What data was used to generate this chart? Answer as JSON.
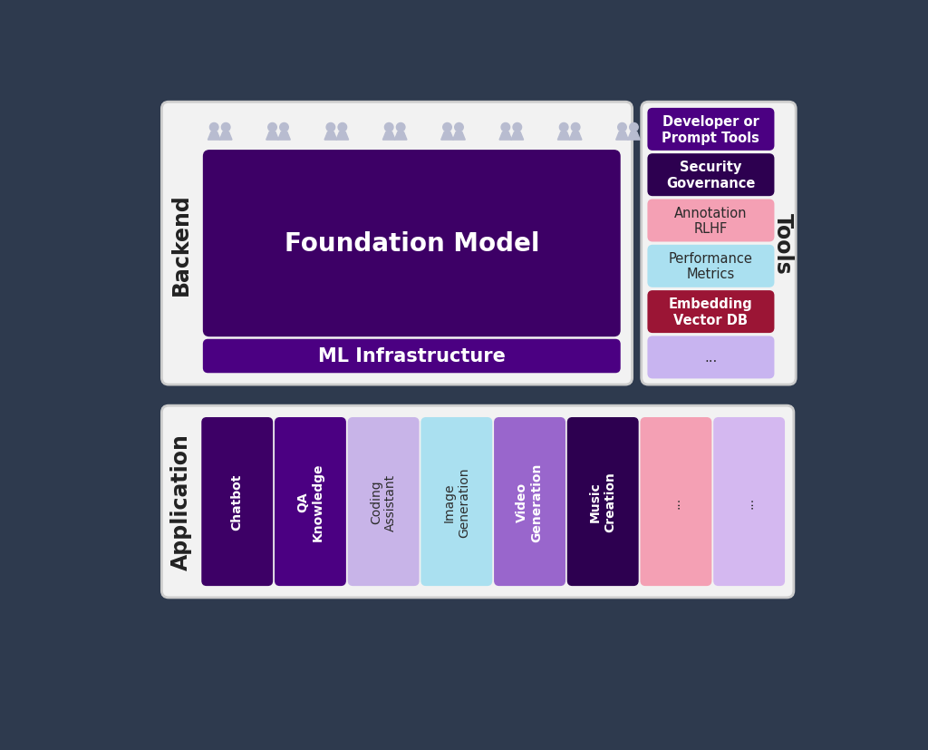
{
  "bg_color": "#2e3a4e",
  "panel_color": "#f0f0f0",
  "panel_edge": "#cccccc",
  "app_bars": [
    {
      "label": "Chatbot",
      "color": "#3d0066",
      "text_color": "#ffffff"
    },
    {
      "label": "QA\nKnowledge",
      "color": "#4b0082",
      "text_color": "#ffffff"
    },
    {
      "label": "Coding\nAssistant",
      "color": "#c8b4e8",
      "text_color": "#2d2d2d"
    },
    {
      "label": "Image\nGeneration",
      "color": "#aae0f0",
      "text_color": "#2d2d2d"
    },
    {
      "label": "Video\nGeneration",
      "color": "#9966cc",
      "text_color": "#ffffff"
    },
    {
      "label": "Music\nCreation",
      "color": "#2d0050",
      "text_color": "#ffffff"
    },
    {
      "label": "...",
      "color": "#f4a0b4",
      "text_color": "#2d2d2d"
    },
    {
      "label": "...",
      "color": "#d4b8f0",
      "text_color": "#2d2d2d"
    }
  ],
  "foundation_model_color": "#3d0066",
  "foundation_model_text": "Foundation Model",
  "ml_infra_color": "#4b0082",
  "ml_infra_text": "ML Infrastructure",
  "tools_items": [
    {
      "label": "Developer or\nPrompt Tools",
      "color": "#4b0082",
      "text_color": "#ffffff"
    },
    {
      "label": "Security\nGovernance",
      "color": "#2d0050",
      "text_color": "#ffffff"
    },
    {
      "label": "Annotation\nRLHF",
      "color": "#f4a0b4",
      "text_color": "#2a2a2a"
    },
    {
      "label": "Performance\nMetrics",
      "color": "#aae0f0",
      "text_color": "#2a2a2a"
    },
    {
      "label": "Embedding\nVector DB",
      "color": "#9b1535",
      "text_color": "#ffffff"
    },
    {
      "label": "...",
      "color": "#c8b4f0",
      "text_color": "#2a2a2a"
    }
  ],
  "section_label_color": "#222222",
  "person_icon_color": "#b8bcd0",
  "num_person_groups": 8
}
